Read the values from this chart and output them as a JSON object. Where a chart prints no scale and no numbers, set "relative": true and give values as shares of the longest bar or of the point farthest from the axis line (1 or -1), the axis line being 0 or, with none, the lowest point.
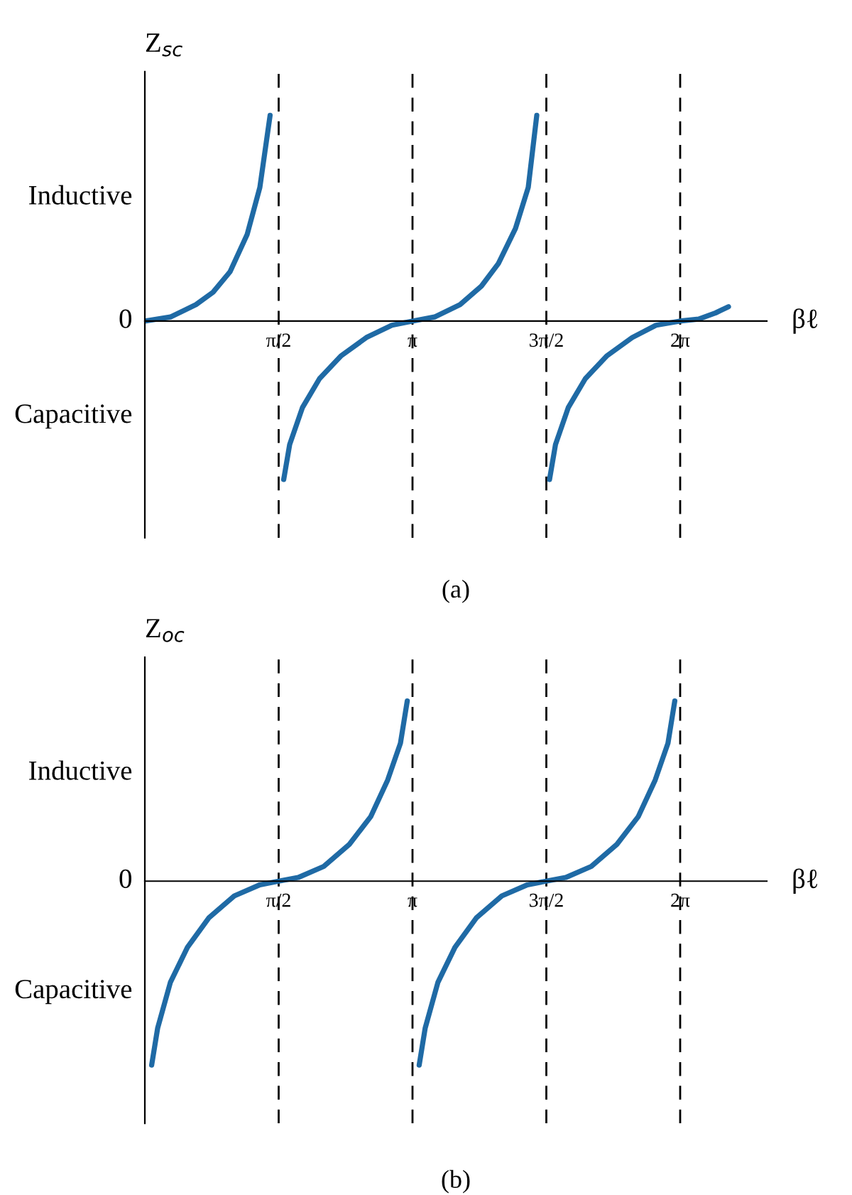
{
  "chart_data": [
    {
      "type": "line",
      "title": "(a)",
      "ylabel": "Z$_{sc}$",
      "xlabel": "βℓ",
      "relative": true,
      "annotations": [
        "Inductive",
        "0",
        "Capacitive"
      ],
      "xlim": [
        0,
        7.3
      ],
      "xticks": [
        {
          "value": 1.5708,
          "label": "π/2"
        },
        {
          "value": 3.1416,
          "label": "π"
        },
        {
          "value": 4.7124,
          "label": "3π/2"
        },
        {
          "value": 6.2832,
          "label": "2π"
        }
      ],
      "grid": false,
      "marker": "none",
      "line_style": "solid",
      "ref_lines": [
        {
          "axis": "x",
          "value": 1.5708,
          "label": null,
          "color": "#000000",
          "line_style": "dashed"
        },
        {
          "axis": "x",
          "value": 3.1416,
          "label": null,
          "color": "#000000",
          "line_style": "dashed"
        },
        {
          "axis": "x",
          "value": 4.7124,
          "label": null,
          "color": "#000000",
          "line_style": "dashed"
        },
        {
          "axis": "x",
          "value": 6.2832,
          "label": null,
          "color": "#000000",
          "line_style": "dashed"
        }
      ],
      "series": [
        {
          "color": "#1f6aa5",
          "x": [
            0,
            0.3,
            0.6,
            0.8,
            1.0,
            1.2,
            1.35,
            1.47
          ],
          "values": [
            0,
            0.02,
            0.08,
            0.14,
            0.24,
            0.42,
            0.65,
            1.0
          ]
        },
        {
          "color": "#1f6aa5",
          "x": [
            1.63,
            1.7,
            1.85,
            2.05,
            2.3,
            2.6,
            2.9,
            3.14,
            3.4,
            3.7,
            3.95,
            4.15,
            4.35,
            4.5,
            4.6
          ],
          "values": [
            -0.77,
            -0.6,
            -0.42,
            -0.28,
            -0.17,
            -0.08,
            -0.02,
            0,
            0.02,
            0.08,
            0.17,
            0.28,
            0.45,
            0.65,
            1.0
          ]
        },
        {
          "color": "#1f6aa5",
          "x": [
            4.75,
            4.82,
            4.97,
            5.17,
            5.42,
            5.72,
            6.0,
            6.28,
            6.5,
            6.7,
            6.85
          ],
          "values": [
            -0.77,
            -0.6,
            -0.42,
            -0.28,
            -0.17,
            -0.08,
            -0.02,
            0,
            0.01,
            0.04,
            0.07
          ]
        }
      ]
    },
    {
      "type": "line",
      "title": "(b)",
      "ylabel": "Z$_{oc}$",
      "xlabel": "βℓ",
      "relative": true,
      "annotations": [
        "Inductive",
        "0",
        "Capacitive"
      ],
      "xlim": [
        0,
        7.3
      ],
      "xticks": [
        {
          "value": 1.5708,
          "label": "π/2"
        },
        {
          "value": 3.1416,
          "label": "π"
        },
        {
          "value": 4.7124,
          "label": "3π/2"
        },
        {
          "value": 6.2832,
          "label": "2π"
        }
      ],
      "grid": false,
      "marker": "none",
      "line_style": "solid",
      "ref_lines": [
        {
          "axis": "x",
          "value": 1.5708,
          "label": null,
          "color": "#000000",
          "line_style": "dashed"
        },
        {
          "axis": "x",
          "value": 3.1416,
          "label": null,
          "color": "#000000",
          "line_style": "dashed"
        },
        {
          "axis": "x",
          "value": 4.7124,
          "label": null,
          "color": "#000000",
          "line_style": "dashed"
        },
        {
          "axis": "x",
          "value": 6.2832,
          "label": null,
          "color": "#000000",
          "line_style": "dashed"
        }
      ],
      "series": [
        {
          "color": "#1f6aa5",
          "x": [
            0.08,
            0.15,
            0.3,
            0.5,
            0.75,
            1.05,
            1.35,
            1.57,
            1.8,
            2.1,
            2.4,
            2.65,
            2.85,
            3.0,
            3.08
          ],
          "values": [
            -1.0,
            -0.8,
            -0.55,
            -0.36,
            -0.2,
            -0.08,
            -0.02,
            0,
            0.02,
            0.08,
            0.2,
            0.35,
            0.55,
            0.75,
            0.98
          ]
        },
        {
          "color": "#1f6aa5",
          "x": [
            3.22,
            3.29,
            3.44,
            3.64,
            3.89,
            4.19,
            4.49,
            4.71,
            4.94,
            5.24,
            5.54,
            5.79,
            5.99,
            6.14,
            6.22
          ],
          "values": [
            -1.0,
            -0.8,
            -0.55,
            -0.36,
            -0.2,
            -0.08,
            -0.02,
            0,
            0.02,
            0.08,
            0.2,
            0.35,
            0.55,
            0.75,
            0.98
          ]
        }
      ]
    }
  ]
}
